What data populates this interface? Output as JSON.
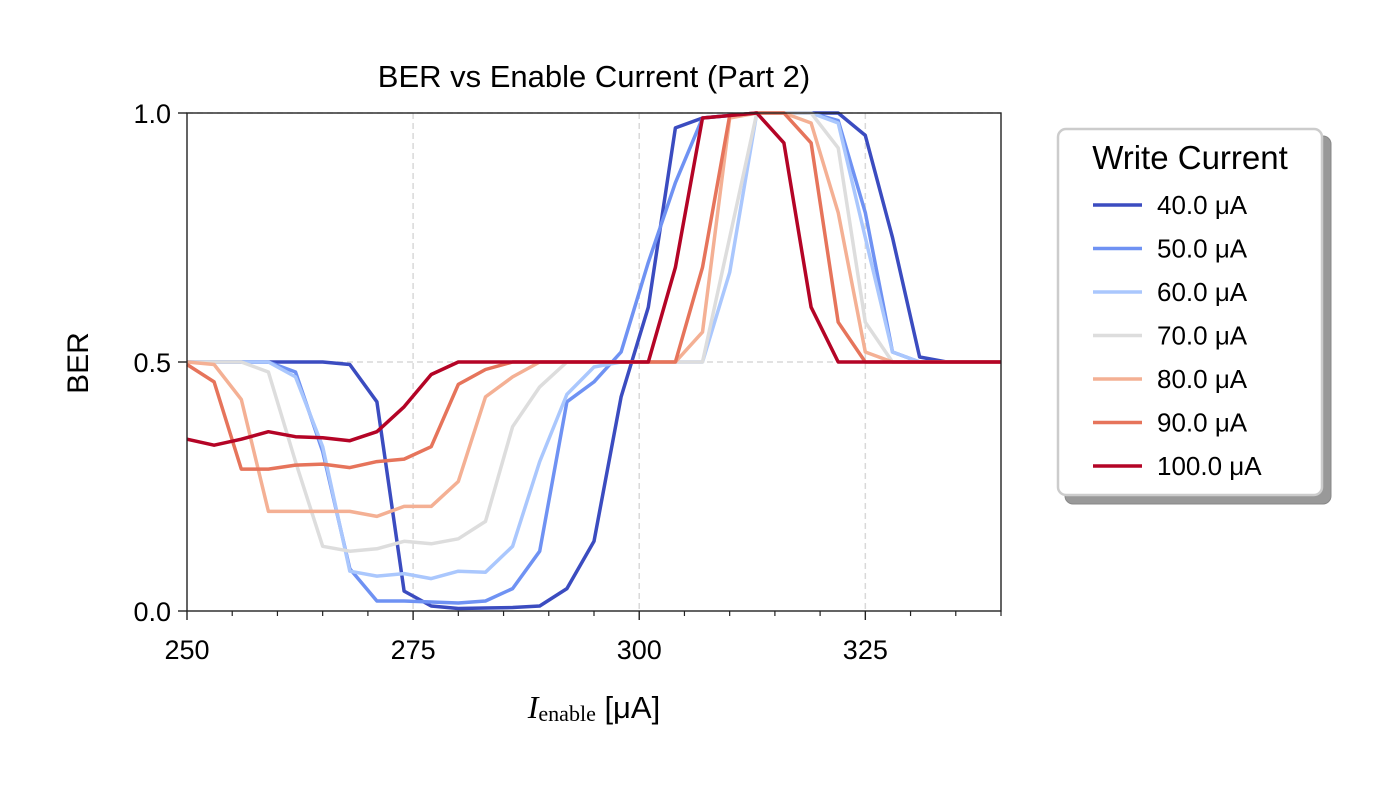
{
  "chart_data": {
    "type": "line",
    "title": "BER vs Enable Current (Part 2)",
    "xlabel_main": "I",
    "xlabel_sub": "enable",
    "xlabel_unit": " [μA]",
    "ylabel": "BER",
    "xlim": [
      250,
      340
    ],
    "ylim": [
      0.0,
      1.0
    ],
    "xticks": [
      250,
      275,
      300,
      325
    ],
    "xtick_labels": [
      "250",
      "275",
      "300",
      "325"
    ],
    "yticks": [
      0.0,
      0.5,
      1.0
    ],
    "ytick_labels": [
      "0.0",
      "0.5",
      "1.0"
    ],
    "grid": "dashed, at major ticks",
    "legend_title": "Write Current",
    "legend_position": "right, outside plot",
    "x": [
      250,
      253,
      256,
      259,
      262,
      265,
      268,
      271,
      274,
      277,
      280,
      283,
      286,
      289,
      292,
      295,
      298,
      301,
      304,
      307,
      310,
      313,
      316,
      319,
      322,
      325,
      328,
      331,
      334,
      337,
      340
    ],
    "series": [
      {
        "name": "40.0 μA",
        "color": "#3b4cc0",
        "values": [
          0.5,
          0.5,
          0.5,
          0.5,
          0.5,
          0.5,
          0.495,
          0.42,
          0.04,
          0.01,
          0.005,
          0.006,
          0.007,
          0.01,
          0.045,
          0.14,
          0.43,
          0.61,
          0.97,
          0.99,
          0.995,
          1.0,
          1.0,
          1.0,
          1.0,
          0.955,
          0.75,
          0.51,
          0.5,
          0.5,
          0.5
        ]
      },
      {
        "name": "50.0 μA",
        "color": "#6f92f3",
        "values": [
          0.5,
          0.5,
          0.5,
          0.5,
          0.48,
          0.32,
          0.085,
          0.02,
          0.02,
          0.018,
          0.016,
          0.02,
          0.045,
          0.12,
          0.42,
          0.46,
          0.52,
          0.7,
          0.86,
          0.99,
          0.995,
          1.0,
          1.0,
          1.0,
          0.985,
          0.8,
          0.52,
          0.5,
          0.5,
          0.5,
          0.5
        ]
      },
      {
        "name": "60.0 μA",
        "color": "#aac7fd",
        "values": [
          0.5,
          0.5,
          0.5,
          0.5,
          0.47,
          0.33,
          0.08,
          0.07,
          0.075,
          0.065,
          0.08,
          0.078,
          0.13,
          0.3,
          0.435,
          0.49,
          0.5,
          0.5,
          0.5,
          0.5,
          0.68,
          1.0,
          1.0,
          1.0,
          0.98,
          0.75,
          0.52,
          0.5,
          0.5,
          0.5,
          0.5
        ]
      },
      {
        "name": "70.0 μA",
        "color": "#dddddd",
        "values": [
          0.5,
          0.5,
          0.5,
          0.48,
          0.3,
          0.13,
          0.12,
          0.125,
          0.14,
          0.135,
          0.145,
          0.18,
          0.37,
          0.45,
          0.5,
          0.5,
          0.5,
          0.5,
          0.5,
          0.5,
          0.75,
          1.0,
          1.0,
          1.0,
          0.93,
          0.58,
          0.5,
          0.5,
          0.5,
          0.5,
          0.5
        ]
      },
      {
        "name": "80.0 μA",
        "color": "#f4b094",
        "values": [
          0.5,
          0.495,
          0.425,
          0.2,
          0.2,
          0.2,
          0.2,
          0.19,
          0.21,
          0.21,
          0.26,
          0.43,
          0.47,
          0.5,
          0.5,
          0.5,
          0.5,
          0.5,
          0.5,
          0.56,
          0.99,
          1.0,
          1.0,
          0.98,
          0.8,
          0.52,
          0.5,
          0.5,
          0.5,
          0.5,
          0.5
        ]
      },
      {
        "name": "90.0 μA",
        "color": "#e6745b",
        "values": [
          0.495,
          0.46,
          0.285,
          0.285,
          0.293,
          0.295,
          0.288,
          0.3,
          0.305,
          0.33,
          0.455,
          0.485,
          0.5,
          0.5,
          0.5,
          0.5,
          0.5,
          0.5,
          0.5,
          0.69,
          0.995,
          1.0,
          1.0,
          0.94,
          0.58,
          0.5,
          0.5,
          0.5,
          0.5,
          0.5,
          0.5
        ]
      },
      {
        "name": "100.0 μA",
        "color": "#b40426",
        "values": [
          0.345,
          0.333,
          0.345,
          0.36,
          0.35,
          0.348,
          0.342,
          0.36,
          0.41,
          0.475,
          0.5,
          0.5,
          0.5,
          0.5,
          0.5,
          0.5,
          0.5,
          0.5,
          0.69,
          0.99,
          0.995,
          1.0,
          0.94,
          0.61,
          0.5,
          0.5,
          0.5,
          0.5,
          0.5,
          0.5,
          0.5
        ]
      }
    ]
  }
}
